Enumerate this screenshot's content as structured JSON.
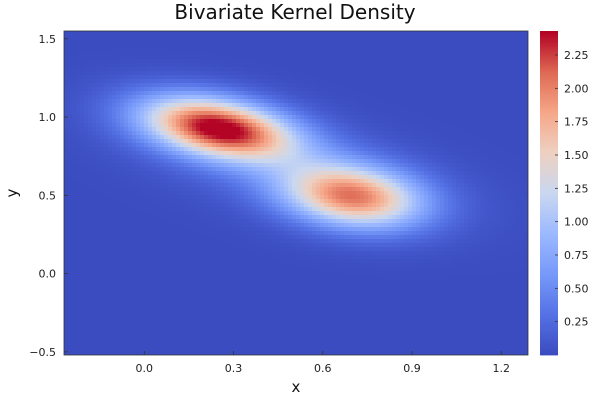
{
  "chart_data": {
    "type": "heatmap",
    "title": "Bivariate Kernel Density",
    "xlabel": "x",
    "ylabel": "y",
    "xlim": [
      -0.27,
      1.29
    ],
    "ylim": [
      -0.52,
      1.55
    ],
    "x_ticks": [
      0.0,
      0.3,
      0.6,
      0.9,
      1.2
    ],
    "x_tick_labels": [
      "0.0",
      "0.3",
      "0.6",
      "0.9",
      "1.2"
    ],
    "y_ticks": [
      -0.5,
      0.0,
      0.5,
      1.0,
      1.5
    ],
    "y_tick_labels": [
      "−0.5",
      "0.0",
      "0.5",
      "1.0",
      "1.5"
    ],
    "colormap": "coolwarm",
    "colorbar_range": [
      0.0,
      2.43
    ],
    "colorbar_ticks": [
      0.25,
      0.5,
      0.75,
      1.0,
      1.25,
      1.5,
      1.75,
      2.0,
      2.25
    ],
    "colorbar_tick_labels": [
      "0.25",
      "0.50",
      "0.75",
      "1.00",
      "1.25",
      "1.50",
      "1.75",
      "2.00",
      "2.25"
    ],
    "density_peaks": [
      {
        "x": 0.25,
        "y": 0.93,
        "density": 2.4
      },
      {
        "x": 0.7,
        "y": 0.49,
        "density": 1.85
      }
    ],
    "grid": false,
    "colors": {
      "low": "#3b4cc0",
      "mid": "#dddddd",
      "high": "#b40426"
    }
  }
}
